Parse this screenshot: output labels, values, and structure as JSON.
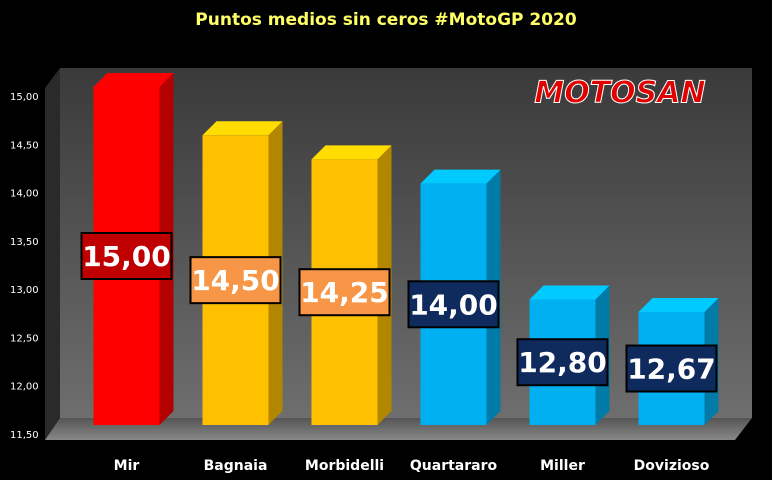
{
  "chart_data": {
    "type": "bar3d",
    "title": "Puntos medios sin ceros #MotoGP 2020",
    "logo": "MOTOSAN",
    "categories": [
      "Mir",
      "Bagnaia",
      "Morbidelli",
      "Quartararo",
      "Miller",
      "Dovizioso"
    ],
    "values": [
      15.0,
      14.5,
      14.25,
      14.0,
      12.8,
      12.67
    ],
    "value_labels": [
      "15,00",
      "14,50",
      "14,25",
      "14,00",
      "12,80",
      "12,67"
    ],
    "colors": [
      "#ff0000",
      "#ffc000",
      "#ffc000",
      "#00b0f0",
      "#00b0f0",
      "#00b0f0"
    ],
    "label_colors": [
      "#c00000",
      "#f79646",
      "#f79646",
      "#0f2a5c",
      "#0f2a5c",
      "#0f2a5c"
    ],
    "ylim": [
      11.5,
      15.0
    ],
    "yticks": [
      {
        "value": 11.5,
        "label": "11,50"
      },
      {
        "value": 12.0,
        "label": "12,00"
      },
      {
        "value": 12.5,
        "label": "12,50"
      },
      {
        "value": 13.0,
        "label": "13,00"
      },
      {
        "value": 13.5,
        "label": "13,50"
      },
      {
        "value": 14.0,
        "label": "14,00"
      },
      {
        "value": 14.5,
        "label": "14,50"
      },
      {
        "value": 15.0,
        "label": "15,00"
      }
    ],
    "grid": false
  }
}
